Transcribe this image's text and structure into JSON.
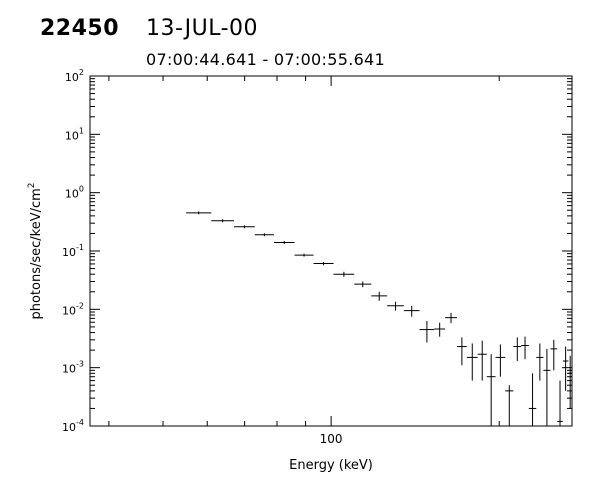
{
  "header": {
    "id": "22450",
    "date": "13-JUL-00",
    "time_range": "07:00:44.641 - 07:00:55.641"
  },
  "chart_data": {
    "type": "scatter",
    "title": "",
    "xlabel": "Energy (keV)",
    "ylabel": "photons/sec/keV/cm2",
    "x_scale": "log",
    "y_scale": "log",
    "xlim": [
      37,
      270
    ],
    "ylim": [
      0.0001,
      100
    ],
    "x_tick_labels": [
      {
        "value": 100,
        "label": "100"
      }
    ],
    "y_tick_labels": [
      {
        "value": 0.0001,
        "base": "10",
        "exp": "-4"
      },
      {
        "value": 0.001,
        "base": "10",
        "exp": "-3"
      },
      {
        "value": 0.01,
        "base": "10",
        "exp": "-2"
      },
      {
        "value": 0.1,
        "base": "10",
        "exp": "-1"
      },
      {
        "value": 1,
        "base": "10",
        "exp": "0"
      },
      {
        "value": 10,
        "base": "10",
        "exp": "1"
      },
      {
        "value": 100,
        "base": "10",
        "exp": "2"
      }
    ],
    "points": [
      {
        "x1": 55.0,
        "x2": 61.0,
        "y": 0.45,
        "ylo": 0.45,
        "yhi": 0.45
      },
      {
        "x1": 61.0,
        "x2": 67.0,
        "y": 0.33,
        "ylo": 0.33,
        "yhi": 0.33
      },
      {
        "x1": 67.0,
        "x2": 73.0,
        "y": 0.26,
        "ylo": 0.26,
        "yhi": 0.26
      },
      {
        "x1": 73.0,
        "x2": 79.0,
        "y": 0.19,
        "ylo": 0.19,
        "yhi": 0.19
      },
      {
        "x1": 79.0,
        "x2": 86.0,
        "y": 0.14,
        "ylo": 0.14,
        "yhi": 0.14
      },
      {
        "x1": 86.0,
        "x2": 93.0,
        "y": 0.085,
        "ylo": 0.08,
        "yhi": 0.09
      },
      {
        "x1": 93.0,
        "x2": 101.0,
        "y": 0.061,
        "ylo": 0.057,
        "yhi": 0.065
      },
      {
        "x1": 101.0,
        "x2": 110.0,
        "y": 0.04,
        "ylo": 0.036,
        "yhi": 0.044
      },
      {
        "x1": 110.0,
        "x2": 118.0,
        "y": 0.027,
        "ylo": 0.024,
        "yhi": 0.03
      },
      {
        "x1": 118.0,
        "x2": 126.0,
        "y": 0.017,
        "ylo": 0.014,
        "yhi": 0.02
      },
      {
        "x1": 126.0,
        "x2": 135.0,
        "y": 0.0115,
        "ylo": 0.0095,
        "yhi": 0.0135
      },
      {
        "x1": 135.0,
        "x2": 144.0,
        "y": 0.0095,
        "ylo": 0.0075,
        "yhi": 0.0115
      },
      {
        "x1": 144.0,
        "x2": 153.0,
        "y": 0.0045,
        "ylo": 0.0027,
        "yhi": 0.0063
      },
      {
        "x1": 153.0,
        "x2": 160.0,
        "y": 0.0046,
        "ylo": 0.0034,
        "yhi": 0.0059
      },
      {
        "x1": 160.0,
        "x2": 168.0,
        "y": 0.0072,
        "ylo": 0.0058,
        "yhi": 0.0087
      },
      {
        "x1": 168.0,
        "x2": 175.0,
        "y": 0.0023,
        "ylo": 0.0011,
        "yhi": 0.0033
      },
      {
        "x1": 175.0,
        "x2": 183.0,
        "y": 0.0015,
        "ylo": 0.0006,
        "yhi": 0.0026
      },
      {
        "x1": 183.0,
        "x2": 190.0,
        "y": 0.0017,
        "ylo": 0.0006,
        "yhi": 0.0029
      },
      {
        "x1": 190.0,
        "x2": 197.0,
        "y": 0.0007,
        "ylo": 0.0001,
        "yhi": 0.0017
      },
      {
        "x1": 197.0,
        "x2": 205.0,
        "y": 0.0015,
        "ylo": 0.0007,
        "yhi": 0.0025
      },
      {
        "x1": 205.0,
        "x2": 212.0,
        "y": 0.0004,
        "ylo": 0.0001,
        "yhi": 0.0005
      },
      {
        "x1": 212.0,
        "x2": 219.0,
        "y": 0.0023,
        "ylo": 0.0013,
        "yhi": 0.0033
      },
      {
        "x1": 219.0,
        "x2": 226.0,
        "y": 0.0024,
        "ylo": 0.0014,
        "yhi": 0.0034
      },
      {
        "x1": 226.0,
        "x2": 233.0,
        "y": 0.0002,
        "ylo": 0.0001,
        "yhi": 0.0008
      },
      {
        "x1": 233.0,
        "x2": 240.0,
        "y": 0.0015,
        "ylo": 0.0006,
        "yhi": 0.0026
      },
      {
        "x1": 240.0,
        "x2": 247.0,
        "y": 0.0009,
        "ylo": 0.0001,
        "yhi": 0.0021
      },
      {
        "x1": 247.0,
        "x2": 254.0,
        "y": 0.0021,
        "ylo": 0.0009,
        "yhi": 0.003
      },
      {
        "x1": 254.0,
        "x2": 260.0,
        "y": 0.00012,
        "ylo": 0.0001,
        "yhi": 0.0006
      },
      {
        "x1": 260.0,
        "x2": 266.0,
        "y": 0.0013,
        "ylo": 0.0004,
        "yhi": 0.0023
      },
      {
        "x1": 266.0,
        "x2": 270.0,
        "y": 0.0008,
        "ylo": 0.0002,
        "yhi": 0.0016
      }
    ]
  }
}
